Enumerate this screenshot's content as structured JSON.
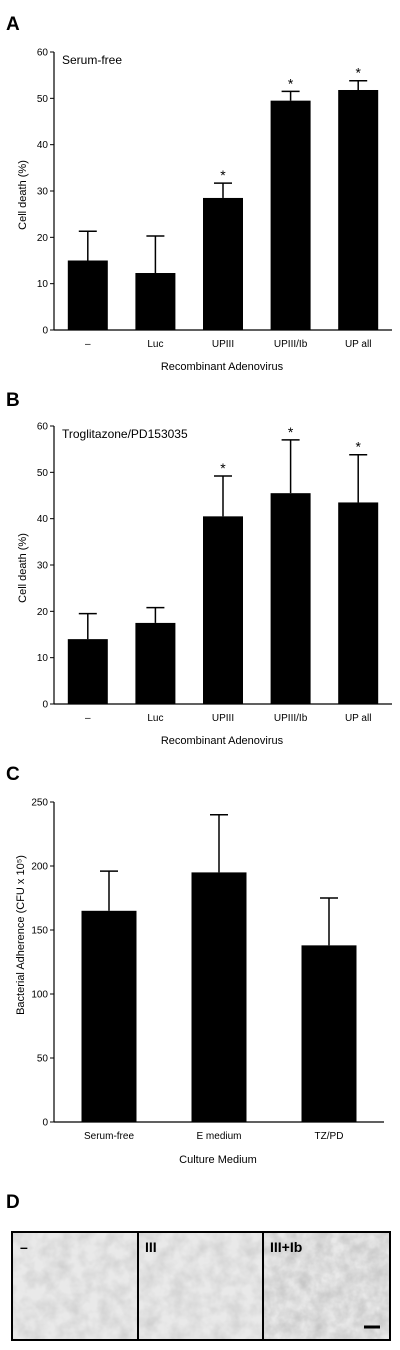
{
  "panels": {
    "a": "A",
    "b": "B",
    "c": "C",
    "d": "D"
  },
  "chart_data": [
    {
      "type": "bar",
      "panel": "A",
      "title": "Serum-free",
      "categories": [
        "–",
        "Luc",
        "UPIII",
        "UPIII/Ib",
        "UP all"
      ],
      "values": [
        15,
        12.3,
        28.5,
        49.5,
        51.8
      ],
      "errors": [
        6.3,
        8,
        3.2,
        2,
        2
      ],
      "significant": [
        "",
        "",
        "*",
        "*",
        "*"
      ],
      "xlabel": "Recombinant Adenovirus",
      "ylabel": "Cell death (%)",
      "ylim": [
        0,
        60
      ],
      "yticks": [
        0,
        10,
        20,
        30,
        40,
        50,
        60
      ],
      "grid": false
    },
    {
      "type": "bar",
      "panel": "B",
      "title": "Troglitazone/PD153035",
      "categories": [
        "–",
        "Luc",
        "UPIII",
        "UPIII/Ib",
        "UP all"
      ],
      "values": [
        14,
        17.5,
        40.5,
        45.5,
        43.5
      ],
      "errors": [
        5.5,
        3.3,
        8.7,
        11.5,
        10.3
      ],
      "significant": [
        "",
        "",
        "*",
        "*",
        "*"
      ],
      "xlabel": "Recombinant Adenovirus",
      "ylabel": "Cell death (%)",
      "ylim": [
        0,
        60
      ],
      "yticks": [
        0,
        10,
        20,
        30,
        40,
        50,
        60
      ],
      "grid": false
    },
    {
      "type": "bar",
      "panel": "C",
      "title": "",
      "categories": [
        "Serum-free",
        "E medium",
        "TZ/PD"
      ],
      "values": [
        165,
        195,
        138
      ],
      "errors": [
        31,
        45,
        37
      ],
      "significant": [
        "",
        "",
        ""
      ],
      "xlabel": "Culture Medium",
      "ylabel": "Bacterial Adherence (CFU x 10⁵)",
      "ylim": [
        0,
        250
      ],
      "yticks": [
        0,
        50,
        100,
        150,
        200,
        250
      ],
      "grid": false
    }
  ],
  "micrographs": [
    {
      "label": "–"
    },
    {
      "label": "III"
    },
    {
      "label": "III+Ib"
    }
  ]
}
